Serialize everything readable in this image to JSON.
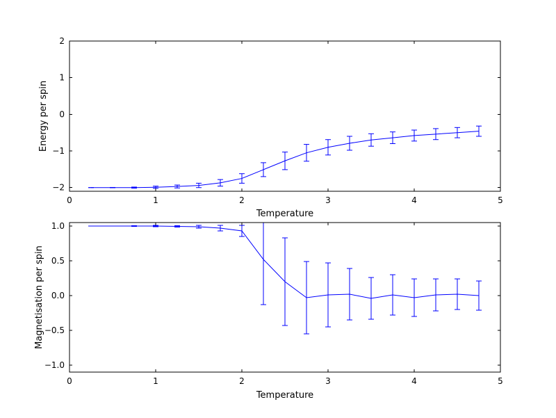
{
  "figure": {
    "background": "#ffffff",
    "series_color": "#0000ff",
    "axis_color": "#000000"
  },
  "chart_data": [
    {
      "type": "line",
      "title": "",
      "xlabel": "Temperature",
      "ylabel": "Energy per spin",
      "legend": null,
      "grid": false,
      "xlim": [
        0,
        5
      ],
      "ylim": [
        -2.1,
        2.0
      ],
      "xticks": [
        0,
        1,
        2,
        3,
        4,
        5
      ],
      "xtick_labels": [
        "0",
        "1",
        "2",
        "3",
        "4",
        "5"
      ],
      "yticks": [
        -2,
        -1,
        0,
        1,
        2
      ],
      "ytick_labels": [
        "−2",
        "−1",
        "0",
        "1",
        "2"
      ],
      "color": "#0000ff",
      "x": [
        0.25,
        0.5,
        0.75,
        1.0,
        1.25,
        1.5,
        1.75,
        2.0,
        2.25,
        2.5,
        2.75,
        3.0,
        3.25,
        3.5,
        3.75,
        4.0,
        4.25,
        4.5,
        4.75
      ],
      "y": [
        -2.0,
        -2.0,
        -2.0,
        -1.99,
        -1.97,
        -1.94,
        -1.87,
        -1.75,
        -1.51,
        -1.27,
        -1.05,
        -0.9,
        -0.79,
        -0.7,
        -0.64,
        -0.58,
        -0.54,
        -0.5,
        -0.46
      ],
      "yerr": [
        0.0,
        0.005,
        0.015,
        0.03,
        0.04,
        0.06,
        0.09,
        0.13,
        0.19,
        0.24,
        0.23,
        0.21,
        0.19,
        0.17,
        0.16,
        0.15,
        0.15,
        0.14,
        0.14
      ]
    },
    {
      "type": "line",
      "title": "",
      "xlabel": "Temperature",
      "ylabel": "Magnetisation per spin",
      "legend": null,
      "grid": false,
      "xlim": [
        0,
        5
      ],
      "ylim": [
        -1.1,
        1.05
      ],
      "xticks": [
        0,
        1,
        2,
        3,
        4,
        5
      ],
      "xtick_labels": [
        "0",
        "1",
        "2",
        "3",
        "4",
        "5"
      ],
      "yticks": [
        -1.0,
        -0.5,
        0.0,
        0.5,
        1.0
      ],
      "ytick_labels": [
        "−1.0",
        "−0.5",
        "0.0",
        "0.5",
        "1.0"
      ],
      "color": "#0000ff",
      "x": [
        0.25,
        0.5,
        0.75,
        1.0,
        1.25,
        1.5,
        1.75,
        2.0,
        2.25,
        2.5,
        2.75,
        3.0,
        3.25,
        3.5,
        3.75,
        4.0,
        4.25,
        4.5,
        4.75
      ],
      "y": [
        1.0,
        1.0,
        1.0,
        1.0,
        0.995,
        0.99,
        0.97,
        0.93,
        0.52,
        0.2,
        -0.03,
        0.01,
        0.02,
        -0.04,
        0.01,
        -0.03,
        0.01,
        0.02,
        0.0
      ],
      "yerr": [
        0.0,
        0.0,
        0.005,
        0.01,
        0.01,
        0.02,
        0.04,
        0.08,
        0.65,
        0.63,
        0.52,
        0.46,
        0.37,
        0.3,
        0.29,
        0.27,
        0.23,
        0.22,
        0.21
      ]
    }
  ]
}
